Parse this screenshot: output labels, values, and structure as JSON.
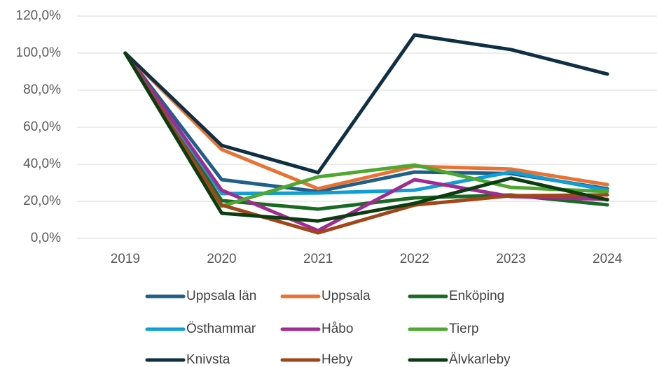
{
  "chart_data": {
    "type": "line",
    "categories": [
      "2019",
      "2020",
      "2021",
      "2022",
      "2023",
      "2024"
    ],
    "series": [
      {
        "name": "Uppsala län",
        "color": "#1f5f8b",
        "values": [
          100,
          31.7,
          25.3,
          35.8,
          35,
          26.8
        ]
      },
      {
        "name": "Uppsala",
        "color": "#e97132",
        "values": [
          100,
          48,
          26.8,
          38.9,
          37.4,
          29
        ]
      },
      {
        "name": "Enköping",
        "color": "#196b24",
        "values": [
          100,
          20.4,
          15.8,
          21.9,
          23.4,
          18.1
        ]
      },
      {
        "name": "Östhammar",
        "color": "#0f9ed5",
        "values": [
          100,
          24.2,
          24.5,
          26,
          35.8,
          26
        ]
      },
      {
        "name": "Håbo",
        "color": "#a02b93",
        "values": [
          100,
          26,
          4.2,
          31.7,
          22.6,
          21.1
        ]
      },
      {
        "name": "Tierp",
        "color": "#4ea72e",
        "values": [
          100,
          17.4,
          33.2,
          39.6,
          27.5,
          25.3
        ]
      },
      {
        "name": "Knivsta",
        "color": "#0e2f44",
        "values": [
          100,
          50.2,
          35.5,
          109.8,
          101.9,
          88.7
        ]
      },
      {
        "name": "Heby",
        "color": "#a0461a",
        "values": [
          100,
          18,
          3,
          18,
          23,
          23.5
        ]
      },
      {
        "name": "Älvkarleby",
        "color": "#0b3d11",
        "values": [
          100,
          13.6,
          9.4,
          18.9,
          32.5,
          20.8
        ]
      }
    ],
    "ylim": [
      0,
      120
    ],
    "yticks": [
      {
        "value": 0,
        "label": "0,0%"
      },
      {
        "value": 20,
        "label": "20,0%"
      },
      {
        "value": 40,
        "label": "40,0%"
      },
      {
        "value": 60,
        "label": "60,0%"
      },
      {
        "value": 80,
        "label": "80,0%"
      },
      {
        "value": 100,
        "label": "100,0%"
      },
      {
        "value": 120,
        "label": "120,0%"
      }
    ],
    "grid": true
  }
}
